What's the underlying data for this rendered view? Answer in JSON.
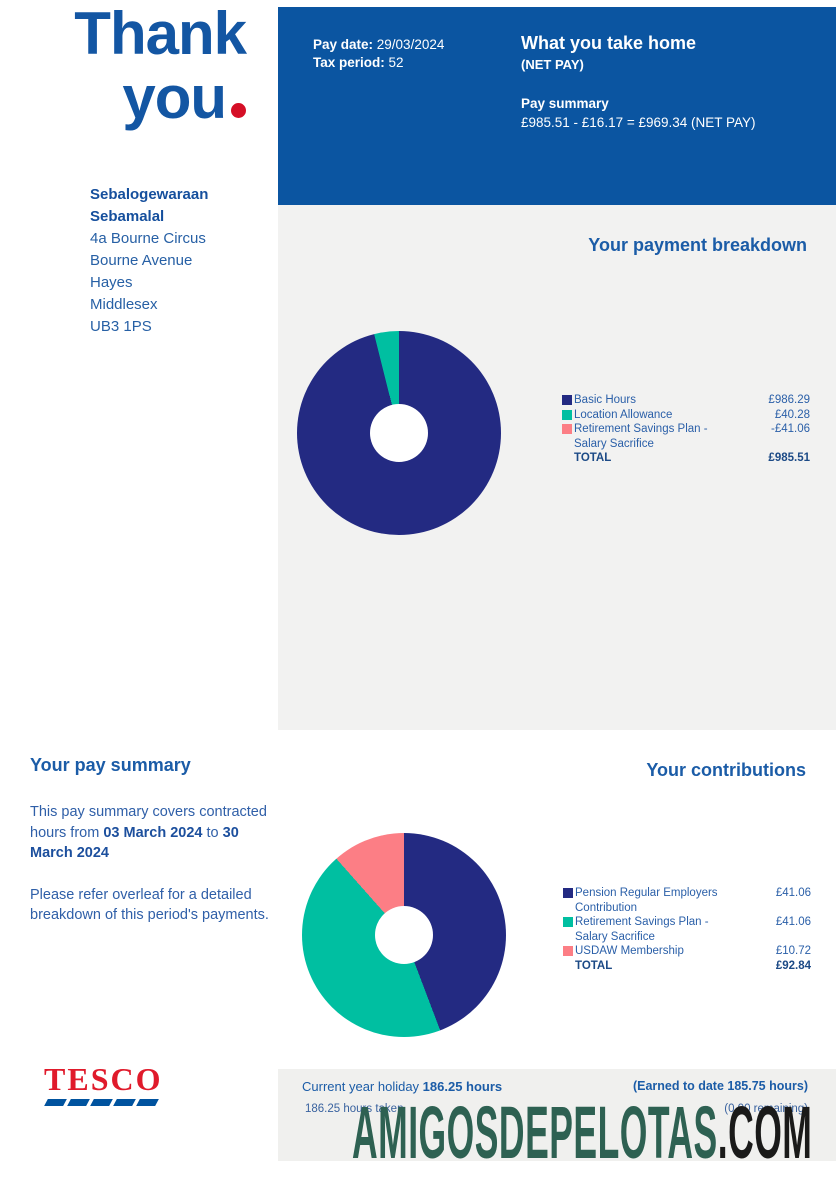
{
  "thank_you": {
    "line1": "Thank",
    "line2": "you"
  },
  "recipient": {
    "name_lines": [
      "Sebalogewaraan",
      "Sebamalal"
    ],
    "address_lines": [
      "4a Bourne Circus",
      "Bourne Avenue",
      "Hayes",
      "Middlesex",
      "UB3 1PS"
    ]
  },
  "header": {
    "pay_date_line": [
      {
        "t": "Pay date: ",
        "b": true
      },
      {
        "t": "29/03/2024"
      }
    ],
    "tax_period_line": [
      {
        "t": "Tax period: ",
        "b": true
      },
      {
        "t": "52"
      }
    ],
    "take_home_title": "What you take home",
    "net_pay_label": "(NET PAY)",
    "pay_summary_label": "Pay summary",
    "pay_summary_formula": "£985.51 - £16.17 = £969.34 (NET PAY)"
  },
  "pay_summary_section": {
    "title": "Your pay summary",
    "paragraphs": [
      [
        {
          "t": "This pay summary covers contracted hours from "
        },
        {
          "t": "03 March 2024",
          "b": true
        },
        {
          "t": " to "
        },
        {
          "t": "30 March 2024",
          "b": true
        }
      ],
      [
        {
          "t": "Please refer overleaf for a detailed breakdown of this period's payments."
        }
      ]
    ]
  },
  "tesco": {
    "name": "TESCO"
  },
  "holiday": {
    "line1_left": [
      {
        "t": "Current year holiday "
      },
      {
        "t": "186.25 hours",
        "b": true
      }
    ],
    "line1_right": "(Earned to date 185.75 hours)",
    "line2_left": "186.25 hours taken",
    "line2_right": "(0.00 remaining)"
  },
  "watermark": {
    "main": "AMIGOSDEPELOTAS",
    "suffix": ".COM"
  },
  "colors": {
    "header_blue": "#0b55a1",
    "panel_gray": "#f2f2f1",
    "navy": "#232a82",
    "teal": "#00bfa1",
    "pink": "#fc7e85",
    "heading_blue": "#1b5ca7",
    "tesco_red": "#e01a2b",
    "tesco_dash_blue": "#00539f",
    "red_dot": "#d50f26",
    "watermark_green": "#2e6152",
    "watermark_black": "#1a1a19"
  },
  "chart_data": [
    {
      "type": "pie",
      "donut": true,
      "title": "Your payment breakdown",
      "labels": [
        "Basic Hours",
        "Location Allowance",
        "Retirement Savings Plan - Salary Sacrifice"
      ],
      "values": [
        986.29,
        40.28,
        -41.06
      ],
      "display_values": [
        "£986.29",
        "£40.28",
        "-£41.06"
      ],
      "colors": [
        "#232a82",
        "#00bfa1",
        "#fc7e85"
      ],
      "total_label": "TOTAL",
      "total_display": "£985.51",
      "start_angle_deg": 0,
      "direction": "clockwise",
      "legend_position": "right",
      "legend": [
        {
          "lines": [
            "Basic Hours"
          ],
          "value": "£986.29",
          "color": "#232a82"
        },
        {
          "lines": [
            "Location Allowance"
          ],
          "value": "£40.28",
          "color": "#00bfa1"
        },
        {
          "lines": [
            "Retirement Savings Plan -",
            "Salary Sacrifice"
          ],
          "value": "-£41.06",
          "color": "#fc7e85"
        }
      ]
    },
    {
      "type": "pie",
      "donut": true,
      "title": "Your contributions",
      "labels": [
        "Pension Regular Employers Contribution",
        "Retirement Savings Plan - Salary Sacrifice",
        "USDAW Membership"
      ],
      "values": [
        41.06,
        41.06,
        10.72
      ],
      "display_values": [
        "£41.06",
        "£41.06",
        "£10.72"
      ],
      "colors": [
        "#232a82",
        "#00bfa1",
        "#fc7e85"
      ],
      "total_label": "TOTAL",
      "total_display": "£92.84",
      "start_angle_deg": 0,
      "direction": "clockwise",
      "legend_position": "right",
      "legend": [
        {
          "lines": [
            "Pension Regular Employers",
            "Contribution"
          ],
          "value": "£41.06",
          "color": "#232a82"
        },
        {
          "lines": [
            "Retirement Savings Plan -",
            "Salary Sacrifice"
          ],
          "value": "£41.06",
          "color": "#00bfa1"
        },
        {
          "lines": [
            "USDAW Membership"
          ],
          "value": "£10.72",
          "color": "#fc7e85"
        }
      ]
    }
  ]
}
